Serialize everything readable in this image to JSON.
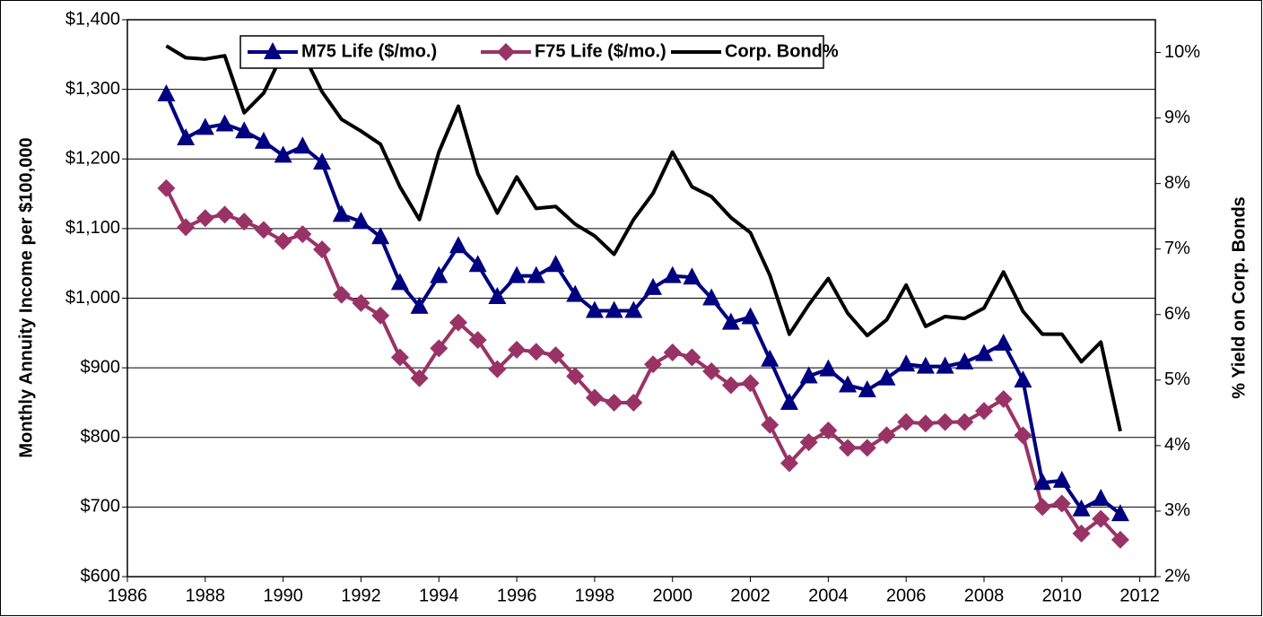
{
  "chart_data": {
    "type": "line",
    "x": [
      1987,
      1987.5,
      1988,
      1988.5,
      1989,
      1989.5,
      1990,
      1990.5,
      1991,
      1991.5,
      1992,
      1992.5,
      1993,
      1993.5,
      1994,
      1994.5,
      1995,
      1995.5,
      1996,
      1996.5,
      1997,
      1997.5,
      1998,
      1998.5,
      1999,
      1999.5,
      2000,
      2000.5,
      2001,
      2001.5,
      2002,
      2002.5,
      2003,
      2003.5,
      2004,
      2004.5,
      2005,
      2005.5,
      2006,
      2006.5,
      2007,
      2007.5,
      2008,
      2008.5,
      2009,
      2009.5,
      2010,
      2010.5,
      2011,
      2011.5
    ],
    "series": [
      {
        "name": "M75 Life ($/mo.)",
        "color": "#000080",
        "marker": "triangle",
        "values": [
          1293,
          1230,
          1245,
          1250,
          1240,
          1225,
          1205,
          1218,
          1195,
          1120,
          1110,
          1088,
          1022,
          988,
          1032,
          1075,
          1048,
          1002,
          1032,
          1032,
          1048,
          1005,
          982,
          982,
          982,
          1015,
          1032,
          1030,
          1000,
          965,
          973,
          912,
          850,
          888,
          898,
          875,
          868,
          885,
          905,
          902,
          902,
          908,
          920,
          935,
          882,
          735,
          738,
          697,
          712,
          690
        ]
      },
      {
        "name": "F75 Life ($/mo.)",
        "color": "#993366",
        "marker": "diamond",
        "values": [
          1158,
          1102,
          1115,
          1120,
          1110,
          1098,
          1082,
          1092,
          1070,
          1005,
          993,
          975,
          915,
          885,
          928,
          965,
          940,
          898,
          926,
          923,
          918,
          888,
          857,
          850,
          850,
          905,
          922,
          915,
          895,
          875,
          878,
          818,
          763,
          793,
          810,
          785,
          785,
          803,
          822,
          820,
          822,
          822,
          838,
          855,
          803,
          700,
          705,
          662,
          683,
          653
        ]
      },
      {
        "name": "Corp. Bond%",
        "color": "#000000",
        "axis": "y2",
        "values": [
          10.1,
          9.92,
          9.9,
          9.95,
          9.08,
          9.38,
          10.0,
          10.0,
          9.4,
          8.98,
          8.8,
          8.6,
          7.95,
          7.45,
          8.48,
          9.18,
          8.15,
          7.55,
          8.1,
          7.62,
          7.65,
          7.38,
          7.2,
          6.92,
          7.45,
          7.85,
          8.48,
          7.95,
          7.8,
          7.48,
          7.25,
          6.6,
          5.7,
          6.15,
          6.55,
          6.02,
          5.68,
          5.92,
          6.45,
          5.82,
          5.97,
          5.94,
          6.1,
          6.65,
          6.05,
          5.7,
          5.7,
          5.28,
          5.58,
          4.22
        ]
      }
    ],
    "y_label": "Monthly Annuity Income per $100,000",
    "y2_label": "% Yield on Corp. Bonds",
    "xlim": [
      1986,
      2012.4
    ],
    "xticks": [
      1986,
      1988,
      1990,
      1992,
      1994,
      1996,
      1998,
      2000,
      2002,
      2004,
      2006,
      2008,
      2010,
      2012
    ],
    "ylim": [
      600,
      1400
    ],
    "yticks": [
      {
        "value": 600,
        "label": "$600"
      },
      {
        "value": 700,
        "label": "$700"
      },
      {
        "value": 800,
        "label": "$800"
      },
      {
        "value": 900,
        "label": "$900"
      },
      {
        "value": 1000,
        "label": "$1,000"
      },
      {
        "value": 1100,
        "label": "$1,100"
      },
      {
        "value": 1200,
        "label": "$1,200"
      },
      {
        "value": 1300,
        "label": "$1,300"
      },
      {
        "value": 1400,
        "label": "$1,400"
      }
    ],
    "y2lim": [
      2,
      10.5
    ],
    "y2ticks": [
      {
        "value": 2,
        "label": "2%"
      },
      {
        "value": 3,
        "label": "3%"
      },
      {
        "value": 4,
        "label": "4%"
      },
      {
        "value": 5,
        "label": "5%"
      },
      {
        "value": 6,
        "label": "6%"
      },
      {
        "value": 7,
        "label": "7%"
      },
      {
        "value": 8,
        "label": "8%"
      },
      {
        "value": 9,
        "label": "9%"
      },
      {
        "value": 10,
        "label": "10%"
      }
    ],
    "grid": true,
    "legend_position": "top"
  }
}
